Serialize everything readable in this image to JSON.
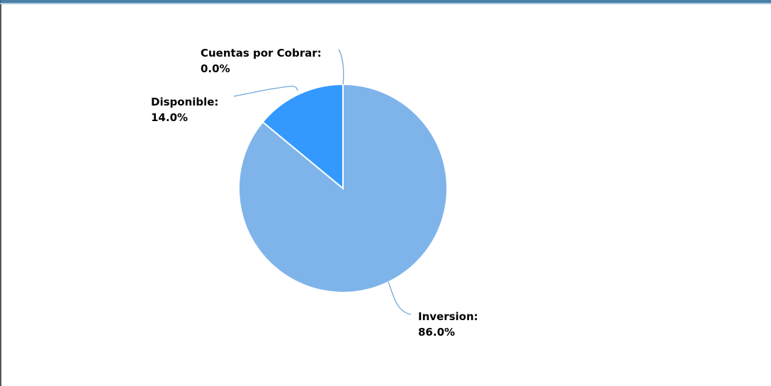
{
  "chart_data": {
    "type": "pie",
    "categories": [
      "Inversion",
      "Disponible",
      "Cuentas por Cobrar"
    ],
    "values": [
      86.0,
      14.0,
      0.0
    ],
    "data_labels": [
      "Inversion:",
      "Disponible:",
      "Cuentas por Cobrar:"
    ],
    "percent_labels": [
      "86.0%",
      "14.0%",
      "0.0%"
    ],
    "colors": [
      "#7eb4ea",
      "#3399ff",
      "#0055aa"
    ],
    "leader_color": "#6fa8dc",
    "start_angle": "12 o'clock",
    "direction": "clockwise"
  }
}
